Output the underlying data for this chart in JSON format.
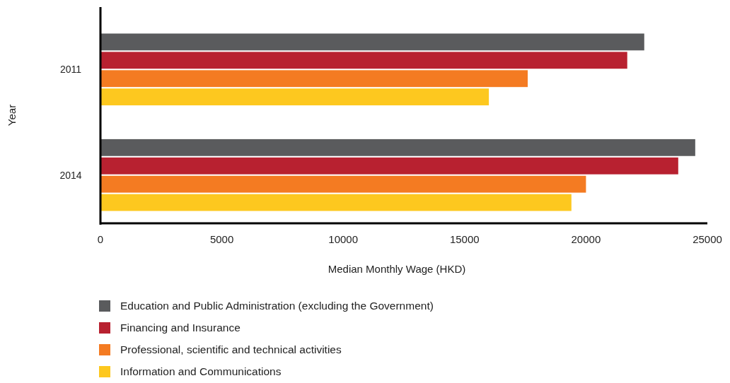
{
  "chart_data": {
    "type": "bar",
    "orientation": "horizontal",
    "xlabel": "Median Monthly Wage (HKD)",
    "ylabel": "Year",
    "categories": [
      "2011",
      "2014"
    ],
    "series": [
      {
        "name": "Education and Public Administration (excluding the Government)",
        "color": "#5a5b5d",
        "values": [
          22400,
          24500
        ]
      },
      {
        "name": "Financing and Insurance",
        "color": "#b82130",
        "values": [
          21700,
          23800
        ]
      },
      {
        "name": "Professional, scientific and technical activities",
        "color": "#f47b22",
        "values": [
          17600,
          20000
        ]
      },
      {
        "name": "Information and Communications",
        "color": "#fdc81f",
        "values": [
          16000,
          19400
        ]
      }
    ],
    "xlim": [
      0,
      25000
    ],
    "xticks": [
      0,
      5000,
      10000,
      15000,
      20000,
      25000
    ],
    "grid": false,
    "legend": "bottom left"
  }
}
